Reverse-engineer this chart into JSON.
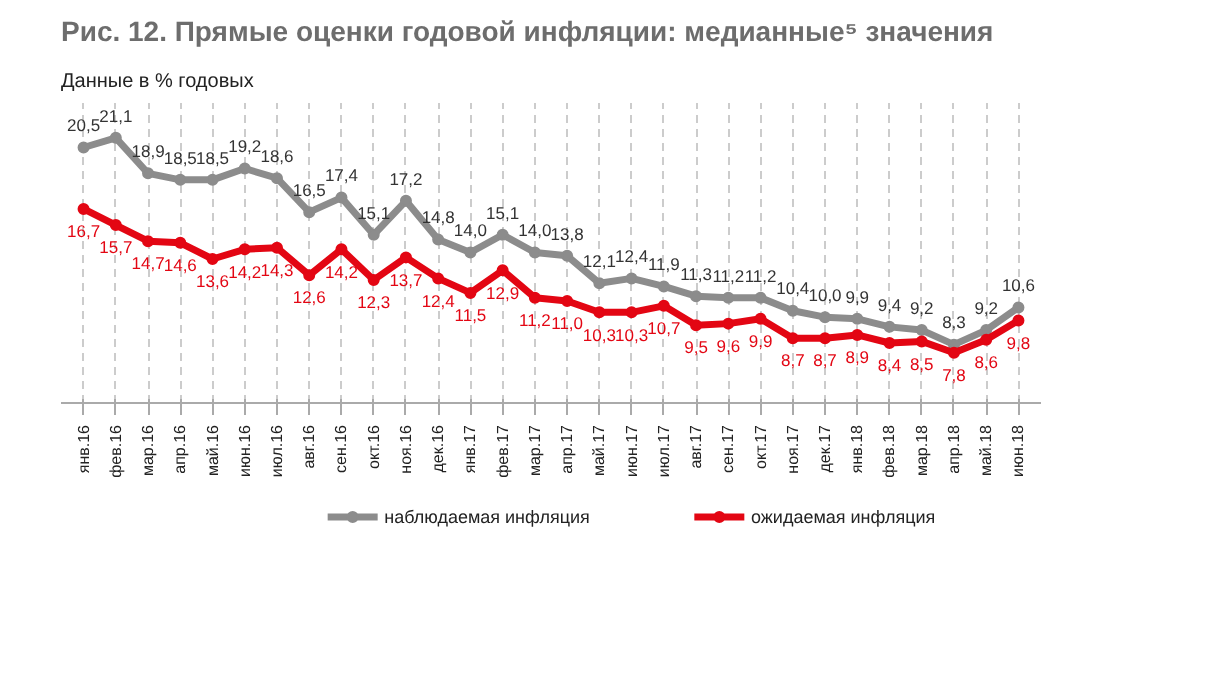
{
  "chart_data": {
    "type": "line",
    "title": "Рис. 12. Прямые оценки годовой инфляции: медианные⁵ значения",
    "subtitle": "Данные в % годовых",
    "categories": [
      "янв.16",
      "фев.16",
      "мар.16",
      "апр.16",
      "май.16",
      "июн.16",
      "июл.16",
      "авг.16",
      "сен.16",
      "окт.16",
      "ноя.16",
      "дек.16",
      "янв.17",
      "фев.17",
      "мар.17",
      "апр.17",
      "май.17",
      "июн.17",
      "июл.17",
      "авг.17",
      "сен.17",
      "окт.17",
      "ноя.17",
      "дек.17",
      "янв.18",
      "фев.18",
      "мар.18",
      "апр.18",
      "май.18",
      "июн.18"
    ],
    "series": [
      {
        "name": "наблюдаемая инфляция",
        "color": "#8c8c8c",
        "values": [
          20.5,
          21.1,
          18.9,
          18.5,
          18.5,
          19.2,
          18.6,
          16.5,
          17.4,
          15.1,
          17.2,
          14.8,
          14.0,
          15.1,
          14.0,
          13.8,
          12.1,
          12.4,
          11.9,
          11.3,
          11.2,
          11.2,
          10.4,
          10.0,
          9.9,
          9.4,
          9.2,
          8.3,
          9.2,
          10.6
        ],
        "value_labels": [
          "20,5",
          "21,1",
          "18,9",
          "18,5",
          "18,5",
          "19,2",
          "18,6",
          "16,5",
          "17,4",
          "15,1",
          "17,2",
          "14,8",
          "14,0",
          "15,1",
          "14,0",
          "13,8",
          "12,1",
          "12,4",
          "11,9",
          "11,3",
          "11,2",
          "11,2",
          "10,4",
          "10,0",
          "9,9",
          "9,4",
          "9,2",
          "8,3",
          "9,2",
          "10,6"
        ]
      },
      {
        "name": "ожидаемая инфляция",
        "color": "#e30613",
        "values": [
          16.7,
          15.7,
          14.7,
          14.6,
          13.6,
          14.2,
          14.3,
          12.6,
          14.2,
          12.3,
          13.7,
          12.4,
          11.5,
          12.9,
          11.2,
          11.0,
          10.3,
          10.3,
          10.7,
          9.5,
          9.6,
          9.9,
          8.7,
          8.7,
          8.9,
          8.4,
          8.5,
          7.8,
          8.6,
          9.8
        ],
        "value_labels": [
          "16,7",
          "15,7",
          "14,7",
          "14,6",
          "13,6",
          "14,2",
          "14,3",
          "12,6",
          "14,2",
          "12,3",
          "13,7",
          "12,4",
          "11,5",
          "12,9",
          "11,2",
          "11,0",
          "10,3",
          "10,3",
          "10,7",
          "9,5",
          "9,6",
          "9,9",
          "8,7",
          "8,7",
          "8,9",
          "8,4",
          "8,5",
          "7,8",
          "8,6",
          "9,8"
        ]
      }
    ],
    "marker": "circle",
    "line_style": "solid",
    "grid": "x",
    "legend": "bottom",
    "tick_labels": "x"
  }
}
